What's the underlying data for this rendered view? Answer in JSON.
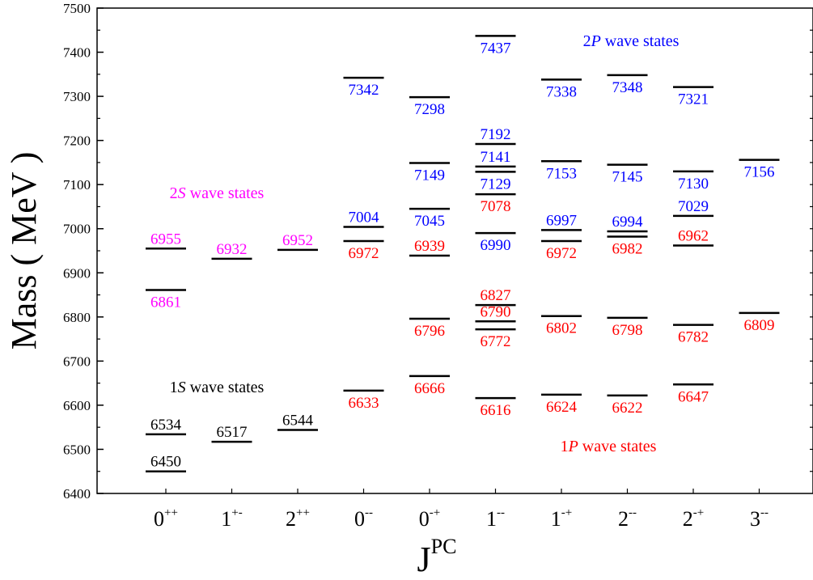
{
  "chart_data": {
    "type": "level-diagram",
    "xlabel": "J",
    "xlabel_superscript": "PC",
    "ylabel": "Mass ( MeV )",
    "ylim": [
      6400,
      7500
    ],
    "yticks": [
      6400,
      6500,
      6600,
      6700,
      6800,
      6900,
      7000,
      7100,
      7200,
      7300,
      7400,
      7500
    ],
    "categories": [
      {
        "base": "0",
        "sup": "++"
      },
      {
        "base": "1",
        "sup": "+-"
      },
      {
        "base": "2",
        "sup": "++"
      },
      {
        "base": "0",
        "sup": "--"
      },
      {
        "base": "0",
        "sup": "-+"
      },
      {
        "base": "1",
        "sup": "--"
      },
      {
        "base": "1",
        "sup": "-+"
      },
      {
        "base": "2",
        "sup": "--"
      },
      {
        "base": "2",
        "sup": "-+"
      },
      {
        "base": "3",
        "sup": "--"
      }
    ],
    "series": [
      {
        "key": "1S",
        "color": "#000000"
      },
      {
        "key": "2S",
        "color": "#ff00ff"
      },
      {
        "key": "1P",
        "color": "#ff0000"
      },
      {
        "key": "2P",
        "color": "#0000ff"
      }
    ],
    "levels": [
      {
        "cat": 0,
        "mass": 6450,
        "series": "1S",
        "label": "6450",
        "side": "above"
      },
      {
        "cat": 0,
        "mass": 6534,
        "series": "1S",
        "label": "6534",
        "side": "above"
      },
      {
        "cat": 1,
        "mass": 6517,
        "series": "1S",
        "label": "6517",
        "side": "above"
      },
      {
        "cat": 2,
        "mass": 6544,
        "series": "1S",
        "label": "6544",
        "side": "above"
      },
      {
        "cat": 0,
        "mass": 6861,
        "series": "2S",
        "label": "6861",
        "side": "below"
      },
      {
        "cat": 0,
        "mass": 6955,
        "series": "2S",
        "label": "6955",
        "side": "above"
      },
      {
        "cat": 1,
        "mass": 6932,
        "series": "2S",
        "label": "6932",
        "side": "above"
      },
      {
        "cat": 2,
        "mass": 6952,
        "series": "2S",
        "label": "6952",
        "side": "above"
      },
      {
        "cat": 3,
        "mass": 6633,
        "series": "1P",
        "label": "6633",
        "side": "below"
      },
      {
        "cat": 3,
        "mass": 6972,
        "series": "1P",
        "label": "6972",
        "side": "below"
      },
      {
        "cat": 4,
        "mass": 6666,
        "series": "1P",
        "label": "6666",
        "side": "below"
      },
      {
        "cat": 4,
        "mass": 6796,
        "series": "1P",
        "label": "6796",
        "side": "below"
      },
      {
        "cat": 4,
        "mass": 6939,
        "series": "1P",
        "label": "6939",
        "side": "above"
      },
      {
        "cat": 5,
        "mass": 6616,
        "series": "1P",
        "label": "6616",
        "side": "below"
      },
      {
        "cat": 5,
        "mass": 6772,
        "series": "1P",
        "label": "6772",
        "side": "below"
      },
      {
        "cat": 5,
        "mass": 6790,
        "series": "1P",
        "label": "6790",
        "side": "above"
      },
      {
        "cat": 5,
        "mass": 6827,
        "series": "1P",
        "label": "6827",
        "side": "above"
      },
      {
        "cat": 5,
        "mass": 7078,
        "series": "1P",
        "label": "7078",
        "side": "below"
      },
      {
        "cat": 6,
        "mass": 6624,
        "series": "1P",
        "label": "6624",
        "side": "below"
      },
      {
        "cat": 6,
        "mass": 6802,
        "series": "1P",
        "label": "6802",
        "side": "below"
      },
      {
        "cat": 6,
        "mass": 6972,
        "series": "1P",
        "label": "6972",
        "side": "below"
      },
      {
        "cat": 7,
        "mass": 6622,
        "series": "1P",
        "label": "6622",
        "side": "below"
      },
      {
        "cat": 7,
        "mass": 6798,
        "series": "1P",
        "label": "6798",
        "side": "below"
      },
      {
        "cat": 7,
        "mass": 6982,
        "series": "1P",
        "label": "6982",
        "side": "below"
      },
      {
        "cat": 8,
        "mass": 6647,
        "series": "1P",
        "label": "6647",
        "side": "below"
      },
      {
        "cat": 8,
        "mass": 6782,
        "series": "1P",
        "label": "6782",
        "side": "below"
      },
      {
        "cat": 8,
        "mass": 6962,
        "series": "1P",
        "label": "6962",
        "side": "above"
      },
      {
        "cat": 9,
        "mass": 6809,
        "series": "1P",
        "label": "6809",
        "side": "below"
      },
      {
        "cat": 3,
        "mass": 7004,
        "series": "2P",
        "label": "7004",
        "side": "above"
      },
      {
        "cat": 3,
        "mass": 7342,
        "series": "2P",
        "label": "7342",
        "side": "below"
      },
      {
        "cat": 4,
        "mass": 7045,
        "series": "2P",
        "label": "7045",
        "side": "below"
      },
      {
        "cat": 4,
        "mass": 7149,
        "series": "2P",
        "label": "7149",
        "side": "below"
      },
      {
        "cat": 4,
        "mass": 7298,
        "series": "2P",
        "label": "7298",
        "side": "below"
      },
      {
        "cat": 5,
        "mass": 6990,
        "series": "2P",
        "label": "6990",
        "side": "below"
      },
      {
        "cat": 5,
        "mass": 7129,
        "series": "2P",
        "label": "7129",
        "side": "below"
      },
      {
        "cat": 5,
        "mass": 7141,
        "series": "2P",
        "label": "7141",
        "side": "above"
      },
      {
        "cat": 5,
        "mass": 7192,
        "series": "2P",
        "label": "7192",
        "side": "above"
      },
      {
        "cat": 5,
        "mass": 7437,
        "series": "2P",
        "label": "7437",
        "side": "below"
      },
      {
        "cat": 6,
        "mass": 6997,
        "series": "2P",
        "label": "6997",
        "side": "above"
      },
      {
        "cat": 6,
        "mass": 7153,
        "series": "2P",
        "label": "7153",
        "side": "below"
      },
      {
        "cat": 6,
        "mass": 7338,
        "series": "2P",
        "label": "7338",
        "side": "below"
      },
      {
        "cat": 7,
        "mass": 6994,
        "series": "2P",
        "label": "6994",
        "side": "above"
      },
      {
        "cat": 7,
        "mass": 7145,
        "series": "2P",
        "label": "7145",
        "side": "below"
      },
      {
        "cat": 7,
        "mass": 7348,
        "series": "2P",
        "label": "7348",
        "side": "below"
      },
      {
        "cat": 8,
        "mass": 7029,
        "series": "2P",
        "label": "7029",
        "side": "above"
      },
      {
        "cat": 8,
        "mass": 7130,
        "series": "2P",
        "label": "7130",
        "side": "below"
      },
      {
        "cat": 8,
        "mass": 7321,
        "series": "2P",
        "label": "7321",
        "side": "below"
      },
      {
        "cat": 9,
        "mass": 7156,
        "series": "2P",
        "label": "7156",
        "side": "below"
      }
    ],
    "annotations": [
      {
        "series": "1S",
        "n": "1",
        "letter": "S",
        "rest": " wave states",
        "color": "#000000"
      },
      {
        "series": "2S",
        "n": "2",
        "letter": "S",
        "rest": " wave states",
        "color": "#ff00ff"
      },
      {
        "series": "1P",
        "n": "1",
        "letter": "P",
        "rest": " wave states",
        "color": "#ff0000"
      },
      {
        "series": "2P",
        "n": "2",
        "letter": "P",
        "rest": " wave states",
        "color": "#0000ff"
      }
    ]
  }
}
